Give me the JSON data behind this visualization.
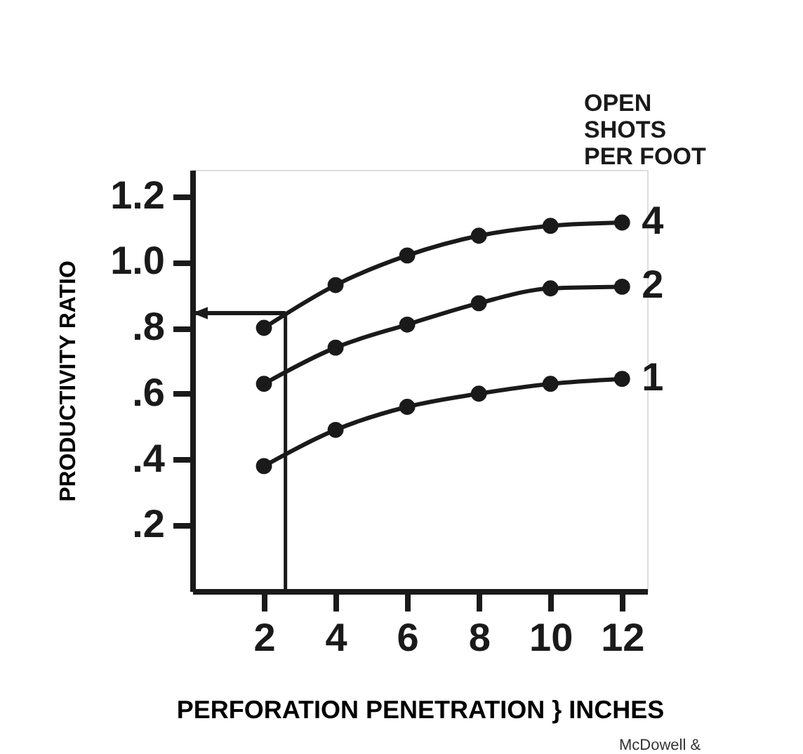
{
  "chart_data": {
    "type": "line",
    "x": [
      2,
      4,
      6,
      8,
      10,
      12
    ],
    "series": [
      {
        "name": "4",
        "color": "#1a1a1a",
        "values": [
          0.8,
          0.93,
          1.02,
          1.08,
          1.11,
          1.12
        ]
      },
      {
        "name": "2",
        "color": "#1a1a1a",
        "values": [
          0.63,
          0.74,
          0.81,
          0.875,
          0.92,
          0.925
        ]
      },
      {
        "name": "1",
        "color": "#1a1a1a",
        "values": [
          0.38,
          0.49,
          0.56,
          0.6,
          0.63,
          0.645
        ]
      }
    ],
    "xlim": [
      0,
      12.7
    ],
    "xticks": [
      2,
      4,
      6,
      8,
      10,
      12
    ],
    "ylim": [
      0,
      1.28
    ],
    "yticks": [
      {
        "value": 0.2,
        "label": ".2"
      },
      {
        "value": 0.4,
        "label": ".4"
      },
      {
        "value": 0.6,
        "label": ".6"
      },
      {
        "value": 0.8,
        "label": ".8"
      },
      {
        "value": 1.0,
        "label": "1.0"
      },
      {
        "value": 1.2,
        "label": "1.2"
      }
    ],
    "xlabel": "PERFORATION PENETRATION } INCHES",
    "ylabel": "PRODUCTIVITY RATIO",
    "legend_title": "OPEN\nSHOTS\nPER FOOT",
    "legend": "right",
    "marker": "circle",
    "line_style": "solid",
    "grid": false,
    "ref_lines": [
      {
        "axis": "x",
        "value": 2.6
      },
      {
        "axis": "y",
        "value": 0.845
      }
    ],
    "annotations": [
      "McDowell &"
    ]
  }
}
